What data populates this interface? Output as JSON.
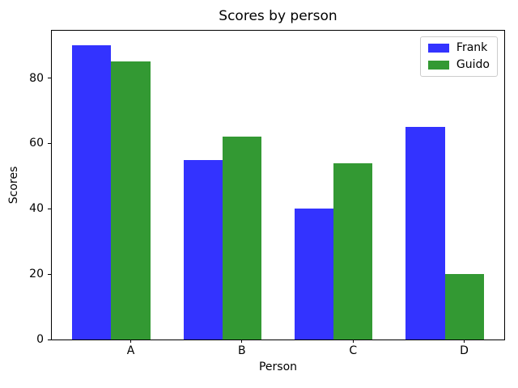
{
  "chart_data": {
    "type": "bar",
    "title": "Scores by person",
    "xlabel": "Person",
    "ylabel": "Scores",
    "categories": [
      "A",
      "B",
      "C",
      "D"
    ],
    "series": [
      {
        "name": "Frank",
        "color": "#3333ff",
        "values": [
          90,
          55,
          40,
          65
        ]
      },
      {
        "name": "Guido",
        "color": "#339933",
        "values": [
          85,
          62,
          54,
          20
        ]
      }
    ],
    "ylim": [
      0,
      94.5
    ],
    "yticks": [
      0,
      20,
      40,
      60,
      80
    ],
    "xlim": [
      -0.36,
      3.71
    ],
    "bar_width_units": 0.35,
    "grid": false,
    "legend_position": "upper right",
    "background_color": "#ffffff",
    "axis_color": "#000000"
  }
}
